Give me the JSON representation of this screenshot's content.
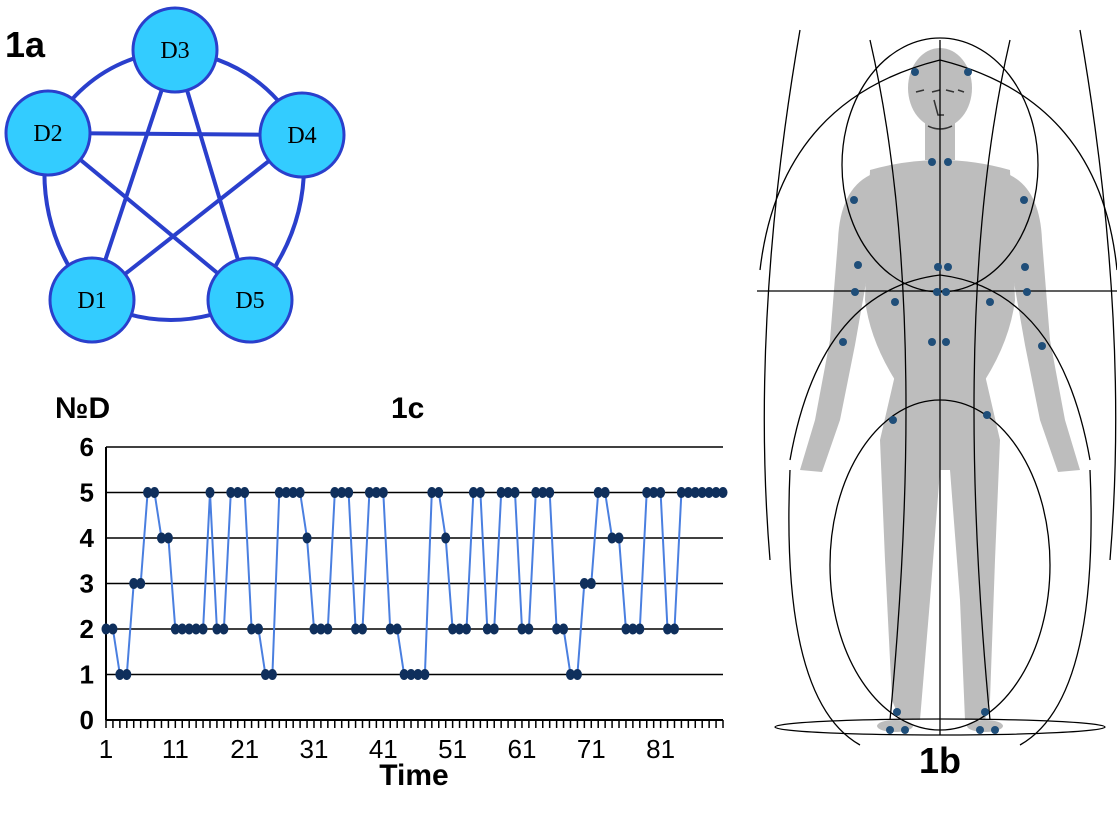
{
  "panels": {
    "graph": {
      "label": "1a"
    },
    "body": {
      "label": "1b"
    },
    "chart": {
      "label": "1c"
    }
  },
  "graph": {
    "nodes": [
      {
        "id": "D1",
        "label": "D1"
      },
      {
        "id": "D2",
        "label": "D2"
      },
      {
        "id": "D3",
        "label": "D3"
      },
      {
        "id": "D4",
        "label": "D4"
      },
      {
        "id": "D5",
        "label": "D5"
      }
    ],
    "edges": [
      [
        "D1",
        "D2"
      ],
      [
        "D2",
        "D3"
      ],
      [
        "D3",
        "D4"
      ],
      [
        "D4",
        "D5"
      ],
      [
        "D5",
        "D1"
      ],
      [
        "D2",
        "D4"
      ],
      [
        "D2",
        "D5"
      ],
      [
        "D1",
        "D3"
      ],
      [
        "D1",
        "D4"
      ],
      [
        "D3",
        "D5"
      ]
    ],
    "node_color": "#33ccff",
    "edge_color": "#2a3fcc"
  },
  "chart_data": {
    "type": "line",
    "title": "1c",
    "xlabel": "Time",
    "ylabel": "№D",
    "ylim": [
      0,
      6
    ],
    "yticks": [
      "0",
      "1",
      "2",
      "3",
      "4",
      "5",
      "6"
    ],
    "xticks": [
      "1",
      "11",
      "21",
      "31",
      "41",
      "51",
      "61",
      "71",
      "81"
    ],
    "grid": true,
    "line_color": "#4a7fe0",
    "marker_color": "#0f2f5c",
    "x": [
      1,
      2,
      3,
      4,
      5,
      6,
      7,
      8,
      9,
      10,
      11,
      12,
      13,
      14,
      15,
      16,
      17,
      18,
      19,
      20,
      21,
      22,
      23,
      24,
      25,
      26,
      27,
      28,
      29,
      30,
      31,
      32,
      33,
      34,
      35,
      36,
      37,
      38,
      39,
      40,
      41,
      42,
      43,
      44,
      45,
      46,
      47,
      48,
      49,
      50,
      51,
      52,
      53,
      54,
      55,
      56,
      57,
      58,
      59,
      60,
      61,
      62,
      63,
      64,
      65,
      66,
      67,
      68,
      69,
      70,
      71,
      72,
      73,
      74,
      75,
      76,
      77,
      78,
      79,
      80,
      81,
      82,
      83,
      84,
      85,
      86,
      87,
      88,
      89,
      90
    ],
    "values": [
      2,
      2,
      1,
      1,
      3,
      3,
      5,
      5,
      4,
      4,
      2,
      2,
      2,
      2,
      2,
      5,
      2,
      2,
      5,
      5,
      5,
      2,
      2,
      1,
      1,
      5,
      5,
      5,
      5,
      4,
      2,
      2,
      2,
      5,
      5,
      5,
      2,
      2,
      5,
      5,
      5,
      2,
      2,
      1,
      1,
      1,
      1,
      5,
      5,
      4,
      2,
      2,
      2,
      5,
      5,
      2,
      2,
      5,
      5,
      5,
      2,
      2,
      5,
      5,
      5,
      2,
      2,
      1,
      1,
      3,
      3,
      5,
      5,
      4,
      4,
      2,
      2,
      2,
      5,
      5,
      5,
      2,
      2,
      5,
      5,
      5,
      5,
      5,
      5,
      5
    ]
  },
  "body_figure": {
    "silhouette_color": "#bdbdbd",
    "marker_color": "#1f4e79",
    "line_color": "#000000"
  }
}
